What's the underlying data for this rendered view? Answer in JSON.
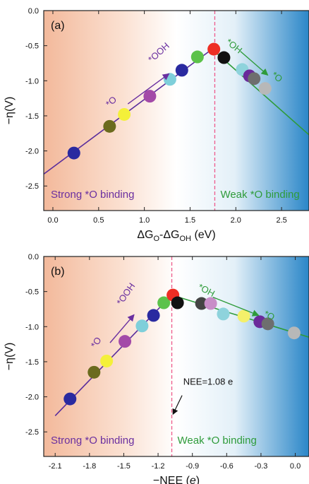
{
  "chart_data": [
    {
      "type": "scatter",
      "panel_label": "(a)",
      "ylabel": "−η(V)",
      "xlabel_main": "ΔG",
      "xlabel_sub1": "O",
      "xlabel_mid": "-ΔG",
      "xlabel_sub2": "OH",
      "xlabel_unit": " (eV)",
      "xlim": [
        -0.1,
        2.8
      ],
      "ylim": [
        -2.85,
        0
      ],
      "xticks": [
        0.0,
        0.5,
        1.0,
        1.5,
        2.0,
        2.5
      ],
      "xtick_labels": [
        "0.0",
        "0.5",
        "1.0",
        "1.5",
        "2.0",
        "2.5"
      ],
      "yticks": [
        0.0,
        -0.5,
        -1.0,
        -1.5,
        -2.0,
        -2.5
      ],
      "ytick_labels": [
        "0.0",
        "-0.5",
        "-1.0",
        "-1.5",
        "-2.0",
        "-2.5"
      ],
      "vline_x": 1.77,
      "left_line": {
        "x": [
          -0.1,
          1.74
        ],
        "y": [
          -2.33,
          -0.55
        ],
        "color": "#5a2d9c"
      },
      "right_line": {
        "x": [
          1.74,
          2.8
        ],
        "y": [
          -0.55,
          -1.77
        ],
        "color": "#2e9b3a"
      },
      "left_region_label": "Strong *O binding",
      "right_region_label": "Weak *O binding",
      "left_label_color": "#6a2fa0",
      "right_label_color": "#2e9b3a",
      "arrow_left": {
        "start_label": "*O",
        "end_label": "*OOH",
        "color": "#6a2fa0",
        "from": [
          0.82,
          -1.33
        ],
        "to": [
          1.27,
          -0.9
        ],
        "start_anchor": [
          0.66,
          -1.33
        ],
        "end_anchor": [
          1.18,
          -0.63
        ],
        "start_rot": -42,
        "end_rot": -42
      },
      "arrow_right": {
        "start_label": "*OH",
        "end_label": "*O",
        "color": "#2e9b3a",
        "from": [
          2.05,
          -0.58
        ],
        "to": [
          2.35,
          -0.92
        ],
        "start_anchor": [
          1.96,
          -0.54
        ],
        "end_anchor": [
          2.43,
          -0.98
        ],
        "start_rot": 38,
        "end_rot": 38
      },
      "points": [
        {
          "x": 0.23,
          "y": -2.03,
          "color": "#2a2aa0"
        },
        {
          "x": 0.62,
          "y": -1.65,
          "color": "#6b6b1e"
        },
        {
          "x": 0.78,
          "y": -1.48,
          "color": "#f4f03a"
        },
        {
          "x": 1.06,
          "y": -1.22,
          "color": "#a34aa8"
        },
        {
          "x": 1.28,
          "y": -0.98,
          "color": "#7fcfda"
        },
        {
          "x": 1.41,
          "y": -0.85,
          "color": "#2a2aa0"
        },
        {
          "x": 1.58,
          "y": -0.66,
          "color": "#5cc24a"
        },
        {
          "x": 1.76,
          "y": -0.55,
          "color": "#ee2e24"
        },
        {
          "x": 1.87,
          "y": -0.67,
          "color": "#111111"
        },
        {
          "x": 2.07,
          "y": -0.84,
          "color": "#8ed3dc"
        },
        {
          "x": 2.15,
          "y": -0.93,
          "color": "#6a2a9a"
        },
        {
          "x": 2.2,
          "y": -0.97,
          "color": "#6e6e6e"
        },
        {
          "x": 2.32,
          "y": -1.11,
          "color": "#b8b8b8"
        }
      ]
    },
    {
      "type": "scatter",
      "panel_label": "(b)",
      "ylabel": "−η(V)",
      "xlabel_main": "−NEE (",
      "xlabel_ital": "e",
      "xlabel_end": ")",
      "xlim": [
        -2.2,
        0.12
      ],
      "ylim": [
        -2.85,
        0
      ],
      "xticks": [
        -2.1,
        -1.8,
        -1.5,
        -1.2,
        -0.9,
        -0.6,
        -0.3,
        0.0
      ],
      "xtick_labels": [
        "-2.1",
        "-1.8",
        "-1.5",
        "-1.2",
        "-0.9",
        "-0.6",
        "-0.3",
        "0.0"
      ],
      "yticks": [
        0.0,
        -0.5,
        -1.0,
        -1.5,
        -2.0,
        -2.5
      ],
      "ytick_labels": [
        "0.0",
        "-0.5",
        "-1.0",
        "-1.5",
        "-2.0",
        "-2.5"
      ],
      "vline_x": -1.08,
      "left_line": {
        "x": [
          -2.1,
          -1.08
        ],
        "y": [
          -2.27,
          -0.55
        ],
        "color": "#5a2d9c"
      },
      "right_line": {
        "x": [
          -1.08,
          0.12
        ],
        "y": [
          -0.55,
          -1.15
        ],
        "color": "#2e9b3a"
      },
      "left_region_label": "Strong *O binding",
      "right_region_label": "Weak *O binding",
      "left_label_color": "#6a2fa0",
      "right_label_color": "#2e9b3a",
      "annotation": {
        "text": "NEE=1.08 e",
        "text_pos": [
          -0.98,
          -1.83
        ],
        "arrow_from": [
          -0.99,
          -1.98
        ],
        "arrow_to": [
          -1.07,
          -2.25
        ]
      },
      "arrow_left": {
        "start_label": "*O",
        "end_label": "*OOH",
        "color": "#6a2fa0",
        "from": [
          -1.62,
          -1.23
        ],
        "to": [
          -1.41,
          -0.83
        ],
        "start_anchor": [
          -1.72,
          -1.25
        ],
        "end_anchor": [
          -1.46,
          -0.56
        ],
        "start_rot": -55,
        "end_rot": -55
      },
      "arrow_right": {
        "start_label": "*OH",
        "end_label": "*O",
        "color": "#2e9b3a",
        "from": [
          -0.72,
          -0.58
        ],
        "to": [
          -0.32,
          -0.84
        ],
        "start_anchor": [
          -0.79,
          -0.52
        ],
        "end_anchor": [
          -0.24,
          -0.88
        ],
        "start_rot": 28,
        "end_rot": 28
      },
      "points": [
        {
          "x": -1.97,
          "y": -2.03,
          "color": "#2a2aa0"
        },
        {
          "x": -1.76,
          "y": -1.65,
          "color": "#6b6b1e"
        },
        {
          "x": -1.65,
          "y": -1.49,
          "color": "#f4f03a"
        },
        {
          "x": -1.49,
          "y": -1.21,
          "color": "#a34aa8"
        },
        {
          "x": -1.34,
          "y": -0.99,
          "color": "#7fcfda"
        },
        {
          "x": -1.24,
          "y": -0.84,
          "color": "#2a2aa0"
        },
        {
          "x": -1.15,
          "y": -0.66,
          "color": "#5cc24a"
        },
        {
          "x": -1.07,
          "y": -0.55,
          "color": "#ee2e24"
        },
        {
          "x": -1.03,
          "y": -0.66,
          "color": "#111111"
        },
        {
          "x": -0.82,
          "y": -0.67,
          "color": "#444444"
        },
        {
          "x": -0.74,
          "y": -0.67,
          "color": "#c88ec8"
        },
        {
          "x": -0.63,
          "y": -0.82,
          "color": "#8ed3dc"
        },
        {
          "x": -0.45,
          "y": -0.85,
          "color": "#f4f06a"
        },
        {
          "x": -0.31,
          "y": -0.93,
          "color": "#6a2a9a"
        },
        {
          "x": -0.24,
          "y": -0.96,
          "color": "#6e6e6e"
        },
        {
          "x": -0.01,
          "y": -1.09,
          "color": "#b8b8b8"
        }
      ]
    }
  ]
}
